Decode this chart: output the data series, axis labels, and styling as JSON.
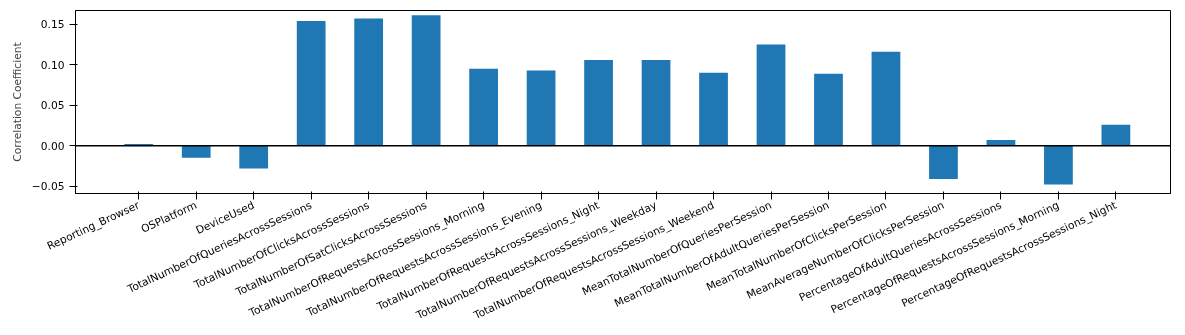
{
  "chart_data": {
    "type": "bar",
    "ylabel": "Correlation Coefficient",
    "categories": [
      "Reporting_Browser",
      "OSPlatform",
      "DeviceUsed",
      "TotalNumberOfQueriesAcrossSessions",
      "TotalNumberOfClicksAcrossSessions",
      "TotalNumberOfSatClicksAcrossSessions",
      "TotalNumberOfRequestsAcrossSessions_Morning",
      "TotalNumberOfRequestsAcrossSessions_Evening",
      "TotalNumberOfRequestsAcrossSessions_Night",
      "TotalNumberOfRequestsAcrossSessions_Weekday",
      "TotalNumberOfRequestsAcrossSessions_Weekend",
      "MeanTotalNumberOfQueriesPerSession",
      "MeanTotalNumberOfAdultQueriesPerSession",
      "MeanTotalNumberOfClicksPerSession",
      "MeanAverageNumberOfClicksPerSession",
      "PercentageOfAdultQueriesAcrossSessions",
      "PercentageOfRequestsAcrossSessions_Morning",
      "PercentageOfRequestsAcrossSessions_Night"
    ],
    "values": [
      0.002,
      -0.015,
      -0.028,
      0.154,
      0.157,
      0.161,
      0.095,
      0.093,
      0.106,
      0.106,
      0.09,
      0.125,
      0.089,
      0.116,
      -0.041,
      0.007,
      -0.048,
      0.026
    ],
    "color": "#1f77b4",
    "ylim": [
      -0.059,
      0.167
    ],
    "yticks": [
      {
        "value": -0.05,
        "label": "−0.05"
      },
      {
        "value": 0,
        "label": "0.00"
      },
      {
        "value": 0.05,
        "label": "0.05"
      },
      {
        "value": 0.1,
        "label": "0.10"
      },
      {
        "value": 0.15,
        "label": "0.15"
      }
    ],
    "ref_lines": [
      {
        "axis": "y",
        "value": 0,
        "color": "#000000"
      }
    ],
    "grid": false
  }
}
